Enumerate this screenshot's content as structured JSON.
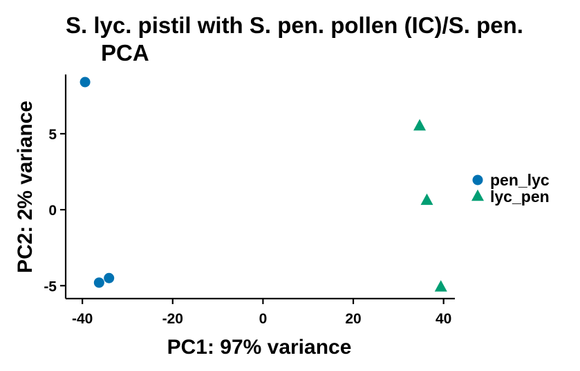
{
  "chart_data": {
    "type": "scatter",
    "title_lines": [
      "S. lyc. pistil with S. pen. pollen (IC)/S. pen.",
      "PCA"
    ],
    "xlabel": "PC1: 97% variance",
    "ylabel": "PC2: 2% variance",
    "xlim": [
      -43.7,
      42.5
    ],
    "ylim": [
      -5.85,
      8.9
    ],
    "xticks": [
      -40,
      -20,
      0,
      20,
      40
    ],
    "yticks": [
      -5,
      0,
      5
    ],
    "x_tick_labels": [
      "-40",
      "-20",
      "0",
      "20",
      "40"
    ],
    "y_tick_labels": [
      "-5",
      "0",
      "5"
    ],
    "grid": false,
    "legend_position": "right",
    "series": [
      {
        "name": "pen_lyc",
        "marker": "circle",
        "color": "#0072B2",
        "points": [
          [
            -39.4,
            8.4
          ],
          [
            -36.3,
            -4.8
          ],
          [
            -34.1,
            -4.5
          ]
        ]
      },
      {
        "name": "lyc_pen",
        "marker": "triangle",
        "color": "#009E73",
        "points": [
          [
            34.7,
            5.5
          ],
          [
            36.3,
            0.6
          ],
          [
            39.4,
            -5.1
          ]
        ]
      }
    ]
  }
}
